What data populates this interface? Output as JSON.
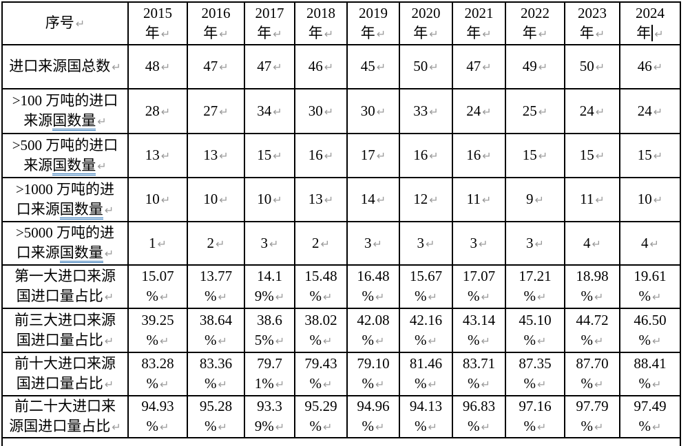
{
  "document": {
    "type": "word-table",
    "grammar_underline_color": "#2e74b5",
    "return_mark": "↵",
    "return_mark_color": "#9a9a9a"
  },
  "table": {
    "corner_header": "序号",
    "year_headers": [
      {
        "lines": [
          "2015",
          "年"
        ],
        "caret": false
      },
      {
        "lines": [
          "2016",
          "年"
        ],
        "caret": false
      },
      {
        "lines": [
          "2017",
          "年"
        ],
        "caret": false
      },
      {
        "lines": [
          "2018",
          "年"
        ],
        "caret": false
      },
      {
        "lines": [
          "2019",
          "年"
        ],
        "caret": false
      },
      {
        "lines": [
          "2020",
          "年"
        ],
        "caret": false
      },
      {
        "lines": [
          "2021",
          "年"
        ],
        "caret": false
      },
      {
        "lines": [
          "2022",
          "年"
        ],
        "caret": false
      },
      {
        "lines": [
          "2023",
          "年"
        ],
        "caret": false
      },
      {
        "lines": [
          "2024",
          "年"
        ],
        "caret": true
      }
    ],
    "rows": [
      {
        "label_lines": [
          "进口来源国总数"
        ],
        "underline": "",
        "cells": [
          [
            "48"
          ],
          [
            "47"
          ],
          [
            "47"
          ],
          [
            "46"
          ],
          [
            "45"
          ],
          [
            "50"
          ],
          [
            "47"
          ],
          [
            "49"
          ],
          [
            "50"
          ],
          [
            "46"
          ]
        ]
      },
      {
        "label_lines": [
          ">100 万吨的进口",
          "来源国数量"
        ],
        "underline": "国数量",
        "cells": [
          [
            "28"
          ],
          [
            "27"
          ],
          [
            "34"
          ],
          [
            "30"
          ],
          [
            "30"
          ],
          [
            "33"
          ],
          [
            "24"
          ],
          [
            "25"
          ],
          [
            "24"
          ],
          [
            "24"
          ]
        ]
      },
      {
        "label_lines": [
          ">500 万吨的进口",
          "来源国数量"
        ],
        "underline": "国数量",
        "cells": [
          [
            "13"
          ],
          [
            "13"
          ],
          [
            "15"
          ],
          [
            "16"
          ],
          [
            "17"
          ],
          [
            "16"
          ],
          [
            "16"
          ],
          [
            "15"
          ],
          [
            "15"
          ],
          [
            "15"
          ]
        ]
      },
      {
        "label_lines": [
          ">1000 万吨的进",
          "口来源国数量"
        ],
        "underline": "国数量",
        "cells": [
          [
            "10"
          ],
          [
            "10"
          ],
          [
            "10"
          ],
          [
            "13"
          ],
          [
            "14"
          ],
          [
            "12"
          ],
          [
            "11"
          ],
          [
            "9"
          ],
          [
            "11"
          ],
          [
            "10"
          ]
        ]
      },
      {
        "label_lines": [
          ">5000 万吨的进",
          "口来源国数量"
        ],
        "underline": "国数量",
        "cells": [
          [
            "1"
          ],
          [
            "2"
          ],
          [
            "3"
          ],
          [
            "2"
          ],
          [
            "3"
          ],
          [
            "3"
          ],
          [
            "3"
          ],
          [
            "3"
          ],
          [
            "4"
          ],
          [
            "4"
          ]
        ]
      },
      {
        "label_lines": [
          "第一大进口来源",
          "国进口量占比"
        ],
        "underline": "",
        "cells": [
          [
            "15.07",
            "%"
          ],
          [
            "13.77",
            "%"
          ],
          [
            "14.1",
            "9%"
          ],
          [
            "15.48",
            "%"
          ],
          [
            "16.48",
            "%"
          ],
          [
            "15.67",
            "%"
          ],
          [
            "17.07",
            "%"
          ],
          [
            "17.21",
            "%"
          ],
          [
            "18.98",
            "%"
          ],
          [
            "19.61",
            "%"
          ]
        ]
      },
      {
        "label_lines": [
          "前三大进口来源",
          "国进口量占比"
        ],
        "underline": "",
        "cells": [
          [
            "39.25",
            "%"
          ],
          [
            "38.64",
            "%"
          ],
          [
            "38.6",
            "5%"
          ],
          [
            "38.02",
            "%"
          ],
          [
            "42.08",
            "%"
          ],
          [
            "42.16",
            "%"
          ],
          [
            "43.14",
            "%"
          ],
          [
            "45.10",
            "%"
          ],
          [
            "44.72",
            "%"
          ],
          [
            "46.50",
            "%"
          ]
        ]
      },
      {
        "label_lines": [
          "前十大进口来源",
          "国进口量占比"
        ],
        "underline": "",
        "cells": [
          [
            "83.28",
            "%"
          ],
          [
            "83.36",
            "%"
          ],
          [
            "79.7",
            "1%"
          ],
          [
            "79.43",
            "%"
          ],
          [
            "79.10",
            "%"
          ],
          [
            "81.46",
            "%"
          ],
          [
            "83.71",
            "%"
          ],
          [
            "87.35",
            "%"
          ],
          [
            "87.70",
            "%"
          ],
          [
            "88.41",
            "%"
          ]
        ]
      },
      {
        "label_lines": [
          "前二十大进口来",
          "源国进口量占比"
        ],
        "underline": "",
        "cells": [
          [
            "94.93",
            "%"
          ],
          [
            "95.28",
            "%"
          ],
          [
            "93.3",
            "9%"
          ],
          [
            "95.29",
            "%"
          ],
          [
            "94.96",
            "%"
          ],
          [
            "94.13",
            "%"
          ],
          [
            "96.83",
            "%"
          ],
          [
            "97.16",
            "%"
          ],
          [
            "97.79",
            "%"
          ],
          [
            "97.49",
            "%"
          ]
        ]
      }
    ]
  }
}
